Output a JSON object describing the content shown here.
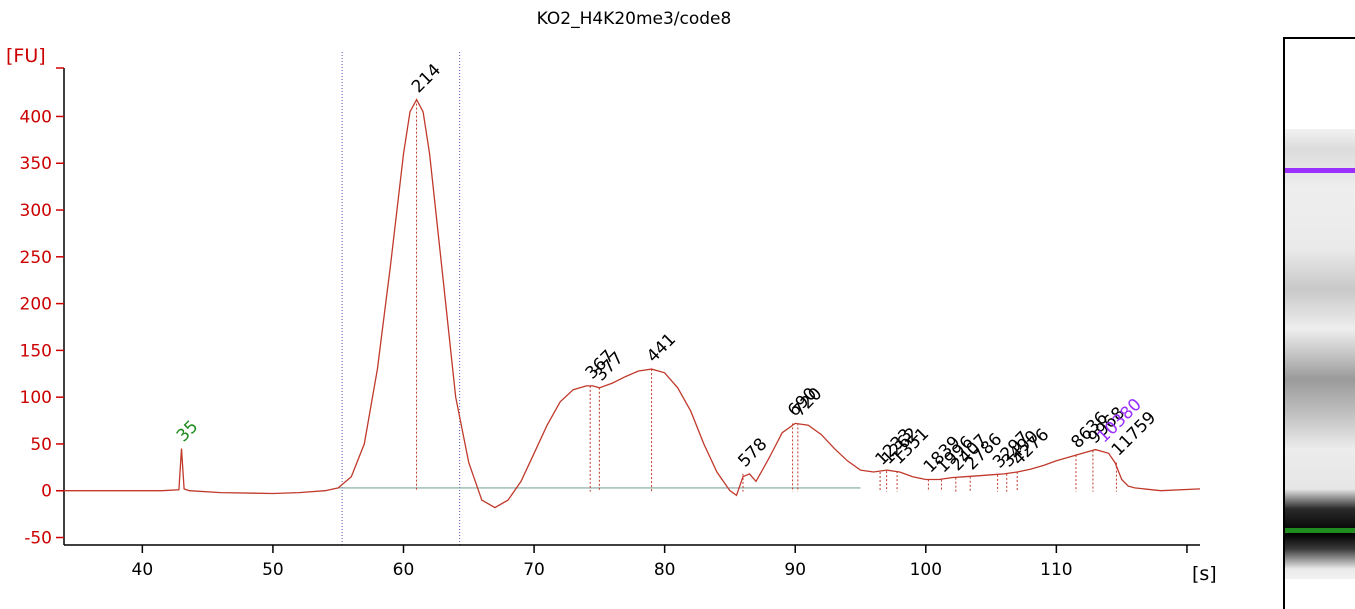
{
  "chart_data": {
    "type": "line",
    "title": "KO2_H4K20me3/code8",
    "ylabel": "[FU]",
    "xlabel": "[s]",
    "xlim": [
      34,
      121
    ],
    "ylim": [
      -58,
      455
    ],
    "x_ticks": [
      40,
      50,
      60,
      70,
      80,
      90,
      100,
      110
    ],
    "y_ticks": [
      -50,
      0,
      50,
      100,
      150,
      200,
      250,
      300,
      350,
      400
    ],
    "region_markers_x": [
      55.3,
      64.3
    ],
    "colors": {
      "axis": "#cc0000",
      "trace": "#c0392b",
      "marker_label": "#1e8c1e",
      "upper_marker_label": "#9b30ff",
      "peak_label": "#000000"
    },
    "series": [
      {
        "values": [
          [
            34,
            0
          ],
          [
            41.5,
            0
          ],
          [
            42.8,
            1
          ],
          [
            43.0,
            45
          ],
          [
            43.2,
            2
          ],
          [
            43.6,
            0
          ],
          [
            46,
            -2
          ],
          [
            50,
            -3
          ],
          [
            52,
            -2
          ],
          [
            54,
            0
          ],
          [
            55,
            3
          ],
          [
            56,
            15
          ],
          [
            57,
            50
          ],
          [
            58,
            130
          ],
          [
            59,
            240
          ],
          [
            60,
            360
          ],
          [
            60.5,
            405
          ],
          [
            61,
            418
          ],
          [
            61.5,
            405
          ],
          [
            62,
            360
          ],
          [
            63,
            230
          ],
          [
            64,
            100
          ],
          [
            65,
            30
          ],
          [
            66,
            -10
          ],
          [
            67,
            -18
          ],
          [
            68,
            -10
          ],
          [
            69,
            10
          ],
          [
            70,
            40
          ],
          [
            71,
            70
          ],
          [
            72,
            95
          ],
          [
            73,
            108
          ],
          [
            74,
            112
          ],
          [
            74.5,
            112
          ],
          [
            75,
            110
          ],
          [
            76,
            115
          ],
          [
            77,
            122
          ],
          [
            78,
            128
          ],
          [
            79,
            130
          ],
          [
            80,
            126
          ],
          [
            81,
            110
          ],
          [
            82,
            85
          ],
          [
            83,
            50
          ],
          [
            84,
            20
          ],
          [
            85,
            0
          ],
          [
            85.5,
            -5
          ],
          [
            86,
            15
          ],
          [
            86.5,
            18
          ],
          [
            87,
            10
          ],
          [
            88,
            35
          ],
          [
            89,
            62
          ],
          [
            90,
            72
          ],
          [
            91,
            70
          ],
          [
            92,
            60
          ],
          [
            93,
            45
          ],
          [
            94,
            32
          ],
          [
            95,
            22
          ],
          [
            96,
            20
          ],
          [
            97,
            22
          ],
          [
            98,
            20
          ],
          [
            99,
            15
          ],
          [
            100,
            12
          ],
          [
            101,
            12
          ],
          [
            102,
            14
          ],
          [
            103,
            15
          ],
          [
            104,
            16
          ],
          [
            105,
            17
          ],
          [
            106,
            18
          ],
          [
            107,
            20
          ],
          [
            108,
            23
          ],
          [
            109,
            27
          ],
          [
            110,
            32
          ],
          [
            111,
            36
          ],
          [
            112,
            40
          ],
          [
            113,
            44
          ],
          [
            114,
            40
          ],
          [
            114.5,
            30
          ],
          [
            115,
            12
          ],
          [
            115.5,
            5
          ],
          [
            116,
            3
          ],
          [
            118,
            0
          ],
          [
            121,
            2
          ]
        ]
      }
    ],
    "peak_labels": [
      {
        "x": 43.0,
        "y": 45,
        "label": "35",
        "kind": "lower_marker"
      },
      {
        "x": 61.0,
        "y": 418,
        "label": "214",
        "kind": "peak"
      },
      {
        "x": 74.3,
        "y": 112,
        "label": "367",
        "kind": "peak"
      },
      {
        "x": 75.0,
        "y": 110,
        "label": "377",
        "kind": "peak"
      },
      {
        "x": 79.0,
        "y": 130,
        "label": "441",
        "kind": "peak"
      },
      {
        "x": 86.0,
        "y": 18,
        "label": "578",
        "kind": "peak"
      },
      {
        "x": 89.8,
        "y": 72,
        "label": "690",
        "kind": "peak"
      },
      {
        "x": 90.2,
        "y": 72,
        "label": "720",
        "kind": "peak"
      },
      {
        "x": 96.5,
        "y": 20,
        "label": "1233",
        "kind": "peak"
      },
      {
        "x": 97.0,
        "y": 21,
        "label": "1262",
        "kind": "peak"
      },
      {
        "x": 97.8,
        "y": 21,
        "label": "1351",
        "kind": "peak"
      },
      {
        "x": 100.2,
        "y": 12,
        "label": "1839",
        "kind": "peak"
      },
      {
        "x": 101.2,
        "y": 12,
        "label": "1996",
        "kind": "peak"
      },
      {
        "x": 102.3,
        "y": 14,
        "label": "2407",
        "kind": "peak"
      },
      {
        "x": 103.4,
        "y": 15,
        "label": "2786",
        "kind": "peak"
      },
      {
        "x": 105.5,
        "y": 17,
        "label": "3297",
        "kind": "peak"
      },
      {
        "x": 106.2,
        "y": 18,
        "label": "3490",
        "kind": "peak"
      },
      {
        "x": 107.0,
        "y": 20,
        "label": "4276",
        "kind": "peak"
      },
      {
        "x": 111.5,
        "y": 38,
        "label": "8636",
        "kind": "peak"
      },
      {
        "x": 112.8,
        "y": 43,
        "label": "9968",
        "kind": "peak"
      },
      {
        "x": 113.5,
        "y": 44,
        "label": "10380",
        "kind": "upper_marker"
      },
      {
        "x": 114.6,
        "y": 30,
        "label": "11759",
        "kind": "peak"
      }
    ]
  }
}
